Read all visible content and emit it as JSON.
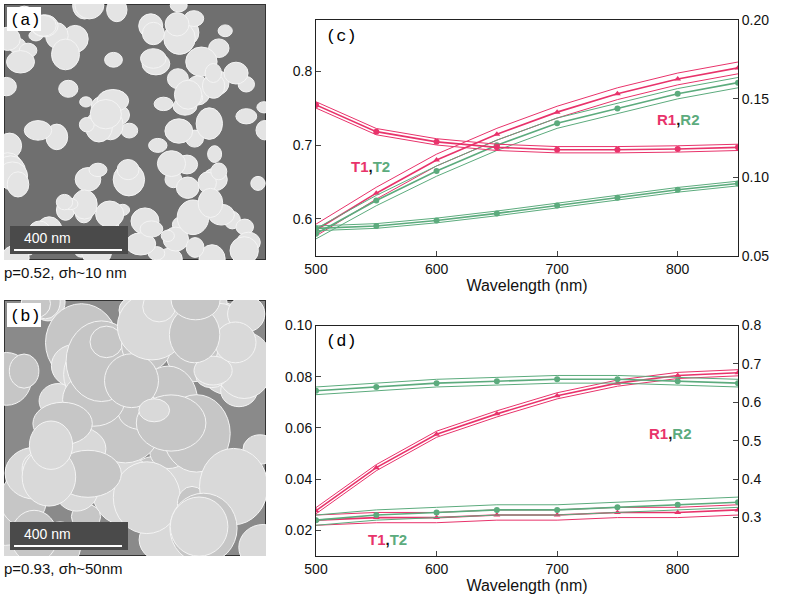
{
  "chart_data": [
    {
      "type": "line",
      "label": "(c)",
      "x_label": "Wavelength (nm)",
      "x": [
        500,
        550,
        600,
        650,
        700,
        750,
        800,
        850
      ],
      "xlim": [
        500,
        850
      ],
      "xticks": [
        500,
        600,
        700,
        800
      ],
      "ylim": [
        0.55,
        0.87
      ],
      "yticks": [
        0.6,
        0.7,
        0.8
      ],
      "y2lim": [
        0.05,
        0.2
      ],
      "y2ticks": [
        0.05,
        {
          "value": 0.1,
          "label": "0.10"
        },
        0.15,
        {
          "value": 0.2,
          "label": "0.20"
        }
      ],
      "grid": false,
      "series": [
        {
          "name": "T1",
          "color": "#e8336b",
          "marker": "triangle",
          "axis": "y",
          "values": [
            0.585,
            0.635,
            0.68,
            0.715,
            0.745,
            0.77,
            0.79,
            0.805
          ],
          "lower": [
            0.577,
            0.627,
            0.672,
            0.707,
            0.737,
            0.762,
            0.782,
            0.797
          ],
          "upper": [
            0.593,
            0.643,
            0.688,
            0.723,
            0.753,
            0.778,
            0.798,
            0.813
          ]
        },
        {
          "name": "T2",
          "color": "#5cab7d",
          "marker": "circle",
          "axis": "y",
          "values": [
            0.58,
            0.625,
            0.665,
            0.7,
            0.73,
            0.75,
            0.77,
            0.785
          ],
          "lower": [
            0.573,
            0.618,
            0.658,
            0.693,
            0.723,
            0.743,
            0.763,
            0.778
          ],
          "upper": [
            0.587,
            0.632,
            0.672,
            0.707,
            0.737,
            0.757,
            0.777,
            0.792
          ]
        },
        {
          "name": "R1",
          "color": "#e8336b",
          "marker": "circle",
          "axis": "y2",
          "values": [
            0.146,
            0.129,
            0.1225,
            0.119,
            0.1175,
            0.1175,
            0.118,
            0.119
          ],
          "lower": [
            0.144,
            0.127,
            0.1205,
            0.117,
            0.1155,
            0.1155,
            0.116,
            0.117
          ],
          "upper": [
            0.148,
            0.131,
            0.1245,
            0.121,
            0.1195,
            0.1195,
            0.12,
            0.121
          ]
        },
        {
          "name": "R2",
          "color": "#5cab7d",
          "marker": "circle",
          "axis": "y2",
          "values": [
            0.0675,
            0.069,
            0.0725,
            0.077,
            0.082,
            0.087,
            0.092,
            0.096
          ],
          "lower": [
            0.066,
            0.0675,
            0.071,
            0.0755,
            0.0805,
            0.0855,
            0.0905,
            0.0945
          ],
          "upper": [
            0.069,
            0.0705,
            0.074,
            0.0785,
            0.0835,
            0.0885,
            0.0935,
            0.0975
          ]
        }
      ],
      "annotations": [
        {
          "text": "T1,T2",
          "axis": "y"
        },
        {
          "text": "R1,R2",
          "axis": "y2"
        }
      ]
    },
    {
      "type": "line",
      "label": "(d)",
      "x_label": "Wavelength (nm)",
      "x": [
        500,
        550,
        600,
        650,
        700,
        750,
        800,
        850
      ],
      "xlim": [
        500,
        850
      ],
      "xticks": [
        500,
        600,
        700,
        800
      ],
      "ylim": [
        0.01,
        0.1
      ],
      "yticks": [
        0.02,
        0.04,
        0.06,
        0.08,
        {
          "value": 0.1,
          "label": "0.10"
        }
      ],
      "y2lim": [
        0.2,
        0.8
      ],
      "y2ticks": [
        0.3,
        0.4,
        0.5,
        0.6,
        0.7,
        0.8
      ],
      "grid": false,
      "series": [
        {
          "name": "T1",
          "color": "#e8336b",
          "marker": "triangle",
          "axis": "y",
          "values": [
            0.024,
            0.025,
            0.025,
            0.026,
            0.026,
            0.027,
            0.027,
            0.028
          ],
          "lower": [
            0.022,
            0.023,
            0.023,
            0.024,
            0.024,
            0.025,
            0.025,
            0.026
          ],
          "upper": [
            0.026,
            0.027,
            0.027,
            0.028,
            0.028,
            0.029,
            0.029,
            0.03
          ]
        },
        {
          "name": "T2",
          "color": "#5cab7d",
          "marker": "circle",
          "axis": "y",
          "values": [
            0.024,
            0.026,
            0.027,
            0.028,
            0.028,
            0.029,
            0.03,
            0.031
          ],
          "lower": [
            0.022,
            0.024,
            0.025,
            0.026,
            0.026,
            0.027,
            0.028,
            0.029
          ],
          "upper": [
            0.026,
            0.028,
            0.029,
            0.03,
            0.03,
            0.031,
            0.032,
            0.033
          ]
        },
        {
          "name": "R1",
          "color": "#e8336b",
          "marker": "triangle",
          "axis": "y2",
          "values": [
            0.318,
            0.43,
            0.517,
            0.57,
            0.617,
            0.65,
            0.67,
            0.677
          ],
          "lower": [
            0.31,
            0.422,
            0.509,
            0.562,
            0.609,
            0.642,
            0.662,
            0.669
          ],
          "upper": [
            0.326,
            0.438,
            0.525,
            0.578,
            0.625,
            0.658,
            0.678,
            0.685
          ]
        },
        {
          "name": "R2",
          "color": "#5cab7d",
          "marker": "circle",
          "axis": "y2",
          "values": [
            0.63,
            0.64,
            0.65,
            0.655,
            0.66,
            0.66,
            0.655,
            0.65
          ],
          "lower": [
            0.62,
            0.63,
            0.64,
            0.645,
            0.65,
            0.65,
            0.645,
            0.64
          ],
          "upper": [
            0.64,
            0.65,
            0.66,
            0.665,
            0.67,
            0.67,
            0.665,
            0.66
          ]
        }
      ],
      "annotations": [
        {
          "text": "T1,T2",
          "axis": "y"
        },
        {
          "text": "R1,R2",
          "axis": "y2"
        }
      ]
    }
  ],
  "images": [
    {
      "label": "(a)",
      "scale_bar": "400 nm",
      "caption": "p=0.52, σh~10 nm"
    },
    {
      "label": "(b)",
      "scale_bar": "400 nm",
      "caption": "p=0.93, σh~50nm"
    }
  ]
}
